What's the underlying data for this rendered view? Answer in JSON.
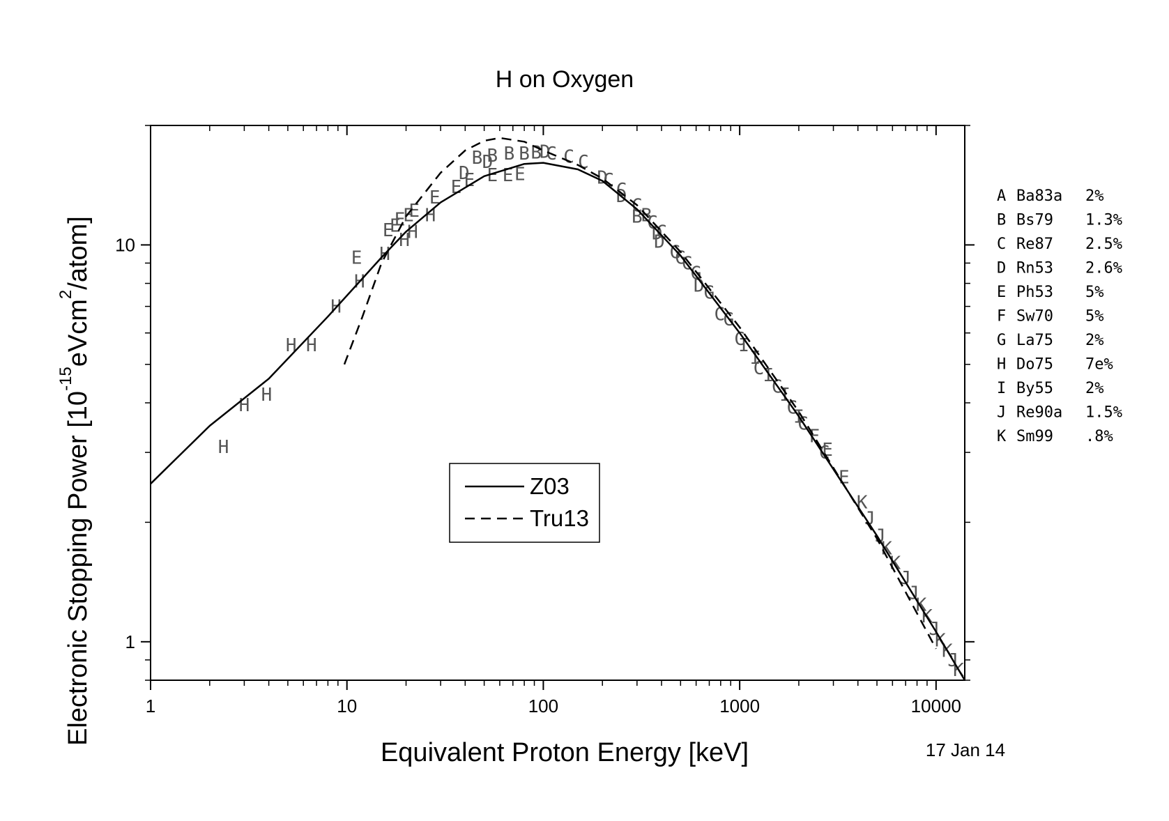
{
  "chart_data": {
    "type": "scatter",
    "title": "H on Oxygen",
    "xlabel": "Equivalent Proton Energy [keV]",
    "ylabel_main": "Electronic Stopping Power [10",
    "ylabel_exp": "-15",
    "ylabel_unit": "eVcm",
    "ylabel_sup": "2",
    "ylabel_tail": "/atom]",
    "x_scale": "log",
    "y_scale": "log",
    "xlim": [
      1,
      14000
    ],
    "ylim": [
      0.8,
      20
    ],
    "x_ticks": [
      {
        "value": 1,
        "label": "1"
      },
      {
        "value": 10,
        "label": "10"
      },
      {
        "value": 100,
        "label": "100"
      },
      {
        "value": 1000,
        "label": "1000"
      },
      {
        "value": 10000,
        "label": "10000"
      }
    ],
    "y_ticks": [
      {
        "value": 1,
        "label": "1"
      },
      {
        "value": 10,
        "label": "10"
      }
    ],
    "date_label": "17 Jan 14",
    "legend_position": "center-left",
    "series": [
      {
        "name": "Z03",
        "style": "solid",
        "x": [
          1,
          2,
          4,
          8,
          15,
          20,
          30,
          50,
          80,
          100,
          150,
          200,
          300,
          500,
          1000,
          2000,
          5000,
          10000,
          14000
        ],
        "y": [
          2.5,
          3.5,
          4.6,
          6.6,
          9.3,
          10.8,
          12.8,
          14.9,
          16.0,
          16.1,
          15.5,
          14.5,
          12.3,
          9.4,
          6.0,
          3.7,
          1.85,
          1.06,
          0.8
        ]
      },
      {
        "name": "Tru13",
        "style": "dashed",
        "x": [
          9.7,
          12,
          15,
          20,
          30,
          40,
          50,
          60,
          80,
          100,
          150,
          200,
          300,
          500,
          1000,
          2000,
          5000,
          10000
        ],
        "y": [
          5.0,
          6.6,
          9.0,
          11.8,
          15.2,
          17.3,
          18.3,
          18.6,
          18.2,
          17.3,
          15.9,
          14.7,
          12.6,
          9.6,
          6.2,
          3.8,
          1.82,
          0.96
        ]
      }
    ],
    "experimental_points": [
      {
        "label": "H",
        "x": 2.35,
        "y": 3.1
      },
      {
        "label": "H",
        "x": 3.0,
        "y": 3.95
      },
      {
        "label": "H",
        "x": 3.9,
        "y": 4.2
      },
      {
        "label": "H",
        "x": 5.2,
        "y": 5.6
      },
      {
        "label": "H",
        "x": 6.6,
        "y": 5.6
      },
      {
        "label": "H",
        "x": 8.8,
        "y": 7.0
      },
      {
        "label": "H",
        "x": 11.6,
        "y": 8.1
      },
      {
        "label": "E",
        "x": 11.2,
        "y": 9.3
      },
      {
        "label": "H",
        "x": 15.6,
        "y": 9.5
      },
      {
        "label": "E",
        "x": 16.2,
        "y": 10.9
      },
      {
        "label": "E",
        "x": 17.6,
        "y": 11.2
      },
      {
        "label": "E",
        "x": 18.6,
        "y": 11.6
      },
      {
        "label": "H",
        "x": 19.6,
        "y": 10.3
      },
      {
        "label": "H",
        "x": 21.6,
        "y": 10.8
      },
      {
        "label": "E",
        "x": 20.6,
        "y": 11.9
      },
      {
        "label": "E",
        "x": 22.0,
        "y": 12.2
      },
      {
        "label": "H",
        "x": 26.6,
        "y": 11.9
      },
      {
        "label": "E",
        "x": 28.0,
        "y": 13.2
      },
      {
        "label": "E",
        "x": 36.0,
        "y": 14.0
      },
      {
        "label": "E",
        "x": 42.0,
        "y": 14.6
      },
      {
        "label": "D",
        "x": 39.5,
        "y": 15.2
      },
      {
        "label": "E",
        "x": 55.0,
        "y": 15.0
      },
      {
        "label": "E",
        "x": 66.0,
        "y": 15.0
      },
      {
        "label": "E",
        "x": 76.0,
        "y": 15.1
      },
      {
        "label": "D",
        "x": 52.0,
        "y": 16.2
      },
      {
        "label": "B",
        "x": 46.0,
        "y": 16.6
      },
      {
        "label": "B",
        "x": 55.0,
        "y": 16.8
      },
      {
        "label": "B",
        "x": 67.0,
        "y": 17.0
      },
      {
        "label": "B",
        "x": 80.0,
        "y": 17.0
      },
      {
        "label": "B",
        "x": 92.0,
        "y": 17.1
      },
      {
        "label": "D",
        "x": 102.0,
        "y": 17.2
      },
      {
        "label": "C",
        "x": 110.0,
        "y": 17.0
      },
      {
        "label": "C",
        "x": 135.0,
        "y": 16.7
      },
      {
        "label": "C",
        "x": 160.0,
        "y": 16.2
      },
      {
        "label": "D",
        "x": 200.0,
        "y": 14.8
      },
      {
        "label": "C",
        "x": 215.0,
        "y": 14.6
      },
      {
        "label": "C",
        "x": 250.0,
        "y": 13.8
      },
      {
        "label": "D",
        "x": 250.0,
        "y": 13.3
      },
      {
        "label": "C",
        "x": 300.0,
        "y": 12.6
      },
      {
        "label": "B",
        "x": 300.0,
        "y": 11.8
      },
      {
        "label": "B",
        "x": 335.0,
        "y": 11.9
      },
      {
        "label": "C",
        "x": 360.0,
        "y": 11.4
      },
      {
        "label": "D",
        "x": 380.0,
        "y": 10.7
      },
      {
        "label": "C",
        "x": 400.0,
        "y": 10.8
      },
      {
        "label": "D",
        "x": 390.0,
        "y": 10.2
      },
      {
        "label": "G",
        "x": 470.0,
        "y": 9.6
      },
      {
        "label": "G",
        "x": 500.0,
        "y": 9.3
      },
      {
        "label": "C",
        "x": 540.0,
        "y": 9.0
      },
      {
        "label": "G",
        "x": 600.0,
        "y": 8.5
      },
      {
        "label": "D",
        "x": 620.0,
        "y": 7.9
      },
      {
        "label": "G",
        "x": 700.0,
        "y": 7.6
      },
      {
        "label": "C",
        "x": 790.0,
        "y": 6.7
      },
      {
        "label": "G",
        "x": 880.0,
        "y": 6.5
      },
      {
        "label": "C",
        "x": 1000.0,
        "y": 5.8
      },
      {
        "label": "I",
        "x": 1050.0,
        "y": 5.6
      },
      {
        "label": "I",
        "x": 1200.0,
        "y": 5.2
      },
      {
        "label": "C",
        "x": 1250.0,
        "y": 4.9
      },
      {
        "label": "I",
        "x": 1400.0,
        "y": 4.7
      },
      {
        "label": "C",
        "x": 1550.0,
        "y": 4.4
      },
      {
        "label": "I",
        "x": 1700.0,
        "y": 4.2
      },
      {
        "label": "C",
        "x": 1850.0,
        "y": 3.9
      },
      {
        "label": "I",
        "x": 2000.0,
        "y": 3.7
      },
      {
        "label": "C",
        "x": 2100.0,
        "y": 3.55
      },
      {
        "label": "F",
        "x": 2400.0,
        "y": 3.3
      },
      {
        "label": "C",
        "x": 2700.0,
        "y": 3.0
      },
      {
        "label": "E",
        "x": 2800.0,
        "y": 3.05
      },
      {
        "label": "E",
        "x": 3400.0,
        "y": 2.6
      },
      {
        "label": "K",
        "x": 4200.0,
        "y": 2.25
      },
      {
        "label": "J",
        "x": 4600.0,
        "y": 2.05
      },
      {
        "label": "J",
        "x": 5200.0,
        "y": 1.85
      },
      {
        "label": "K",
        "x": 5600.0,
        "y": 1.72
      },
      {
        "label": "K",
        "x": 6200.0,
        "y": 1.58
      },
      {
        "label": "J",
        "x": 7000.0,
        "y": 1.45
      },
      {
        "label": "J",
        "x": 7700.0,
        "y": 1.33
      },
      {
        "label": "K",
        "x": 8400.0,
        "y": 1.24
      },
      {
        "label": "K",
        "x": 9000.0,
        "y": 1.16
      },
      {
        "label": "J",
        "x": 9800.0,
        "y": 1.08
      },
      {
        "label": "K",
        "x": 10500.0,
        "y": 1.01
      },
      {
        "label": "K",
        "x": 11400.0,
        "y": 0.95
      },
      {
        "label": "J",
        "x": 12200.0,
        "y": 0.9
      },
      {
        "label": "K",
        "x": 13000.0,
        "y": 0.85
      }
    ],
    "reference_legend": [
      {
        "key": "A",
        "name": "Ba83a",
        "error": "2%"
      },
      {
        "key": "B",
        "name": "Bs79",
        "error": "1.3%"
      },
      {
        "key": "C",
        "name": "Re87",
        "error": "2.5%"
      },
      {
        "key": "D",
        "name": "Rn53",
        "error": "2.6%"
      },
      {
        "key": "E",
        "name": "Ph53",
        "error": "5%"
      },
      {
        "key": "F",
        "name": "Sw70",
        "error": "5%"
      },
      {
        "key": "G",
        "name": "La75",
        "error": "2%"
      },
      {
        "key": "H",
        "name": "Do75",
        "error": "7e%"
      },
      {
        "key": "I",
        "name": "By55",
        "error": "2%"
      },
      {
        "key": "J",
        "name": "Re90a",
        "error": "1.5%"
      },
      {
        "key": "K",
        "name": "Sm99",
        "error": ".8%"
      }
    ]
  }
}
